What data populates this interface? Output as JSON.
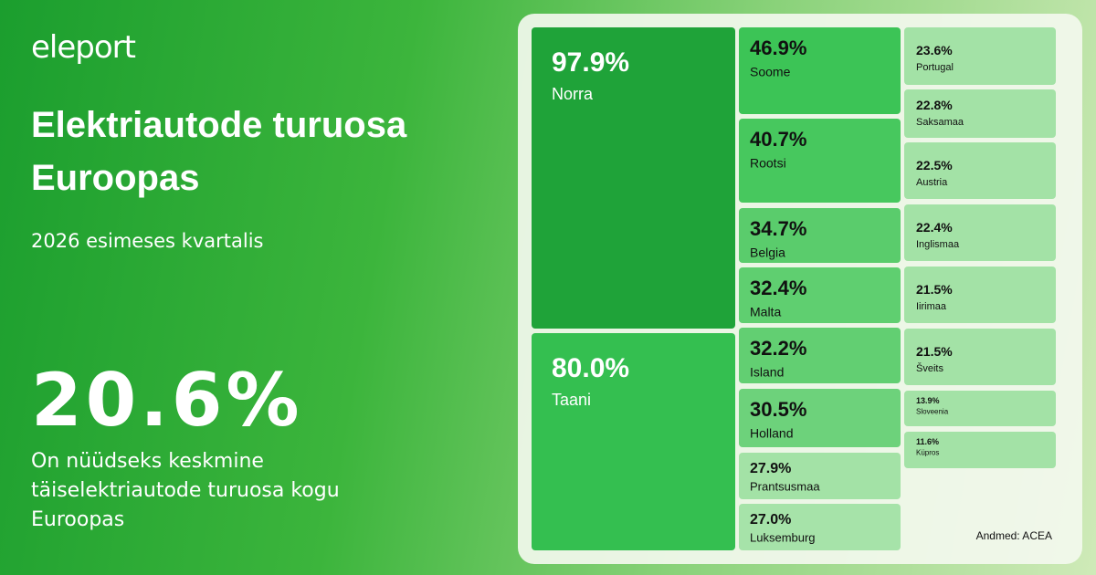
{
  "brand": "eleport",
  "chart_data": {
    "type": "treemap",
    "title": "Elektriautode turuosa Euroopas",
    "subtitle": "2026 esimeses kvartalis",
    "headline": {
      "value": 20.6,
      "label": "20.6%"
    },
    "description": "On nüüdseks keskmine täiselektriautode turuosa kogu Euroopas",
    "source": "Andmed: ACEA",
    "categories": [
      "Norra",
      "Taani",
      "Soome",
      "Rootsi",
      "Belgia",
      "Malta",
      "Island",
      "Holland",
      "Prantsusmaa",
      "Luksemburg",
      "Portugal",
      "Saksamaa",
      "Austria",
      "Inglismaa",
      "Iirimaa",
      "Šveits",
      "Sloveenia",
      "Küpros"
    ],
    "values": [
      97.9,
      80.0,
      46.9,
      40.7,
      34.7,
      32.4,
      32.2,
      30.5,
      27.9,
      27.0,
      23.6,
      22.8,
      22.5,
      22.4,
      21.5,
      21.5,
      13.9,
      11.6
    ],
    "value_labels": [
      "97.9%",
      "80.0%",
      "46.9%",
      "40.7%",
      "34.7%",
      "32.4%",
      "32.2%",
      "30.5%",
      "27.9%",
      "27.0%",
      "23.6%",
      "22.8%",
      "22.5%",
      "22.4%",
      "21.5%",
      "21.5%",
      "13.9%",
      "11.6%"
    ],
    "colors": [
      "#1fa339",
      "#34bf50",
      "#3cc456",
      "#47c85e",
      "#5acc6c",
      "#5fcf70",
      "#62cf72",
      "#6dd27b",
      "#a3e2a6",
      "#a6e3a9",
      "#a3e2a6",
      "#a3e2a6",
      "#a3e2a6",
      "#a3e2a6",
      "#a3e2a6",
      "#a3e2a6",
      "#a3e2a6",
      "#a3e2a6"
    ]
  }
}
